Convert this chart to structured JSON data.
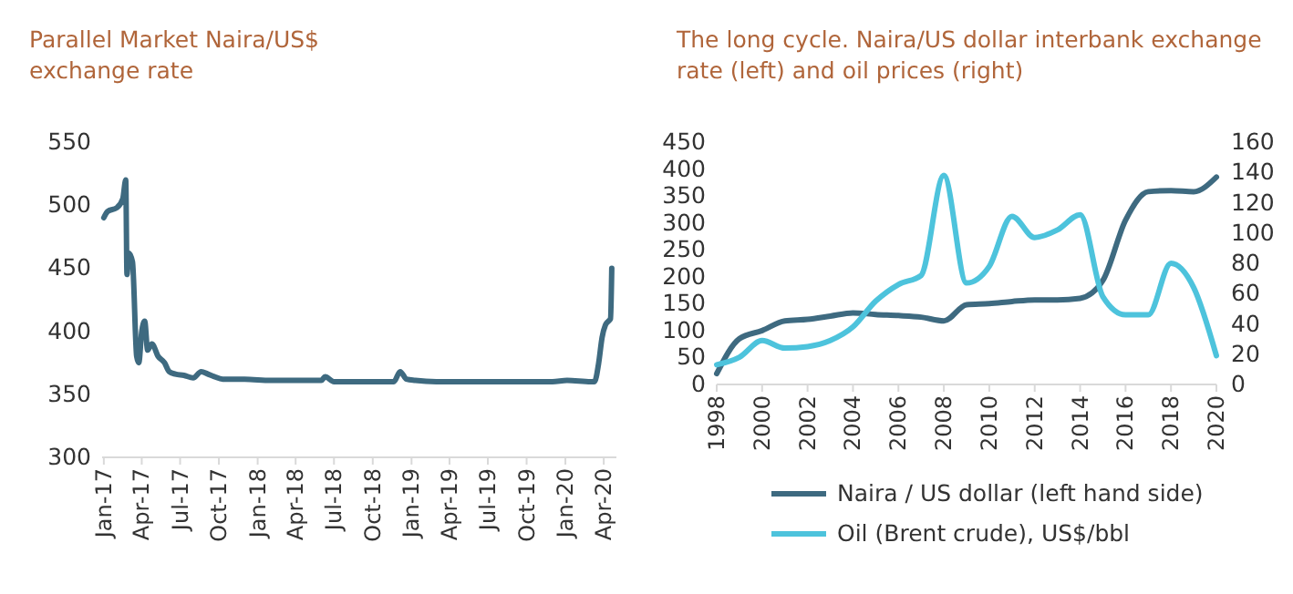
{
  "chart_data": [
    {
      "type": "line",
      "title": "Parallel Market Naira/US$\nexchange rate",
      "x": [
        "2017-01-01",
        "2017-01-10",
        "2017-02-01",
        "2017-02-15",
        "2017-02-22",
        "2017-02-25",
        "2017-03-01",
        "2017-03-10",
        "2017-03-20",
        "2017-03-25",
        "2017-04-01",
        "2017-04-08",
        "2017-04-15",
        "2017-04-25",
        "2017-05-10",
        "2017-05-25",
        "2017-06-05",
        "2017-06-20",
        "2017-07-10",
        "2017-08-01",
        "2017-08-20",
        "2017-09-05",
        "2017-09-20",
        "2017-10-10",
        "2017-12-01",
        "2018-02-01",
        "2018-04-01",
        "2018-06-01",
        "2018-06-10",
        "2018-07-01",
        "2018-08-15",
        "2018-10-15",
        "2018-11-20",
        "2018-12-05",
        "2018-12-20",
        "2019-01-10",
        "2019-03-01",
        "2019-06-01",
        "2019-09-01",
        "2019-12-01",
        "2020-01-05",
        "2020-03-01",
        "2020-03-10",
        "2020-03-20",
        "2020-03-28",
        "2020-04-05",
        "2020-04-12",
        "2020-04-17",
        "2020-04-20"
      ],
      "series": [
        {
          "color": "#3e6a80",
          "values": [
            490,
            495,
            498,
            505,
            520,
            445,
            462,
            455,
            380,
            375,
            400,
            408,
            385,
            390,
            380,
            375,
            368,
            366,
            365,
            363,
            368,
            366,
            364,
            362,
            362,
            361,
            361,
            361,
            364,
            360,
            360,
            360,
            360,
            368,
            362,
            361,
            360,
            360,
            360,
            360,
            361,
            360,
            360,
            375,
            395,
            405,
            408,
            410,
            450
          ]
        }
      ],
      "xlim": [
        "2016-12-28",
        "2020-05-01"
      ],
      "xticks": [
        {
          "value": "2017-01-01",
          "label": "Jan-17"
        },
        {
          "value": "2017-04-01",
          "label": "Apr-17"
        },
        {
          "value": "2017-07-01",
          "label": "Jul-17"
        },
        {
          "value": "2017-10-01",
          "label": "Oct-17"
        },
        {
          "value": "2018-01-01",
          "label": "Jan-18"
        },
        {
          "value": "2018-04-01",
          "label": "Apr-18"
        },
        {
          "value": "2018-07-01",
          "label": "Jul-18"
        },
        {
          "value": "2018-10-01",
          "label": "Oct-18"
        },
        {
          "value": "2019-01-01",
          "label": "Jan-19"
        },
        {
          "value": "2019-04-01",
          "label": "Apr-19"
        },
        {
          "value": "2019-07-01",
          "label": "Jul-19"
        },
        {
          "value": "2019-10-01",
          "label": "Oct-19"
        },
        {
          "value": "2020-01-01",
          "label": "Jan-20"
        },
        {
          "value": "2020-04-01",
          "label": "Apr-20"
        }
      ],
      "ylim": [
        300,
        550
      ],
      "yticks": [
        300,
        350,
        400,
        450,
        500,
        550
      ]
    },
    {
      "type": "line",
      "title": "The long cycle. Naira/US dollar interbank exchange\nrate (left) and oil prices (right)",
      "x": [
        1998,
        1999,
        2000,
        2001,
        2002,
        2003,
        2004,
        2005,
        2006,
        2007,
        2008,
        2009,
        2010,
        2011,
        2012,
        2013,
        2014,
        2015,
        2016,
        2017,
        2018,
        2019,
        2020
      ],
      "series": [
        {
          "name": "Naira / US dollar (left hand side)",
          "color": "#3e6a80",
          "values": [
            20,
            85,
            100,
            118,
            121,
            127,
            133,
            130,
            128,
            125,
            118,
            148,
            150,
            154,
            157,
            157,
            160,
            193,
            305,
            358,
            360,
            358,
            385
          ]
        },
        {
          "name": "Oil (Brent crude), US$/bbl",
          "color": "#4dc3dc",
          "axis": "y2",
          "values": [
            13,
            18,
            29,
            24,
            25,
            29,
            38,
            55,
            66,
            72,
            138,
            67,
            78,
            111,
            97,
            102,
            112,
            58,
            46,
            46,
            80,
            64,
            19
          ]
        }
      ],
      "xlim": [
        1998,
        2020
      ],
      "xticks": [
        1998,
        2000,
        2002,
        2004,
        2006,
        2008,
        2010,
        2012,
        2014,
        2016,
        2018,
        2020
      ],
      "ylim": [
        0,
        450
      ],
      "yticks": [
        0,
        50,
        100,
        150,
        200,
        250,
        300,
        350,
        400,
        450
      ],
      "y2lim": [
        0,
        160
      ],
      "y2ticks": [
        0,
        20,
        40,
        60,
        80,
        100,
        120,
        140,
        160
      ],
      "legend": "bottom"
    }
  ]
}
